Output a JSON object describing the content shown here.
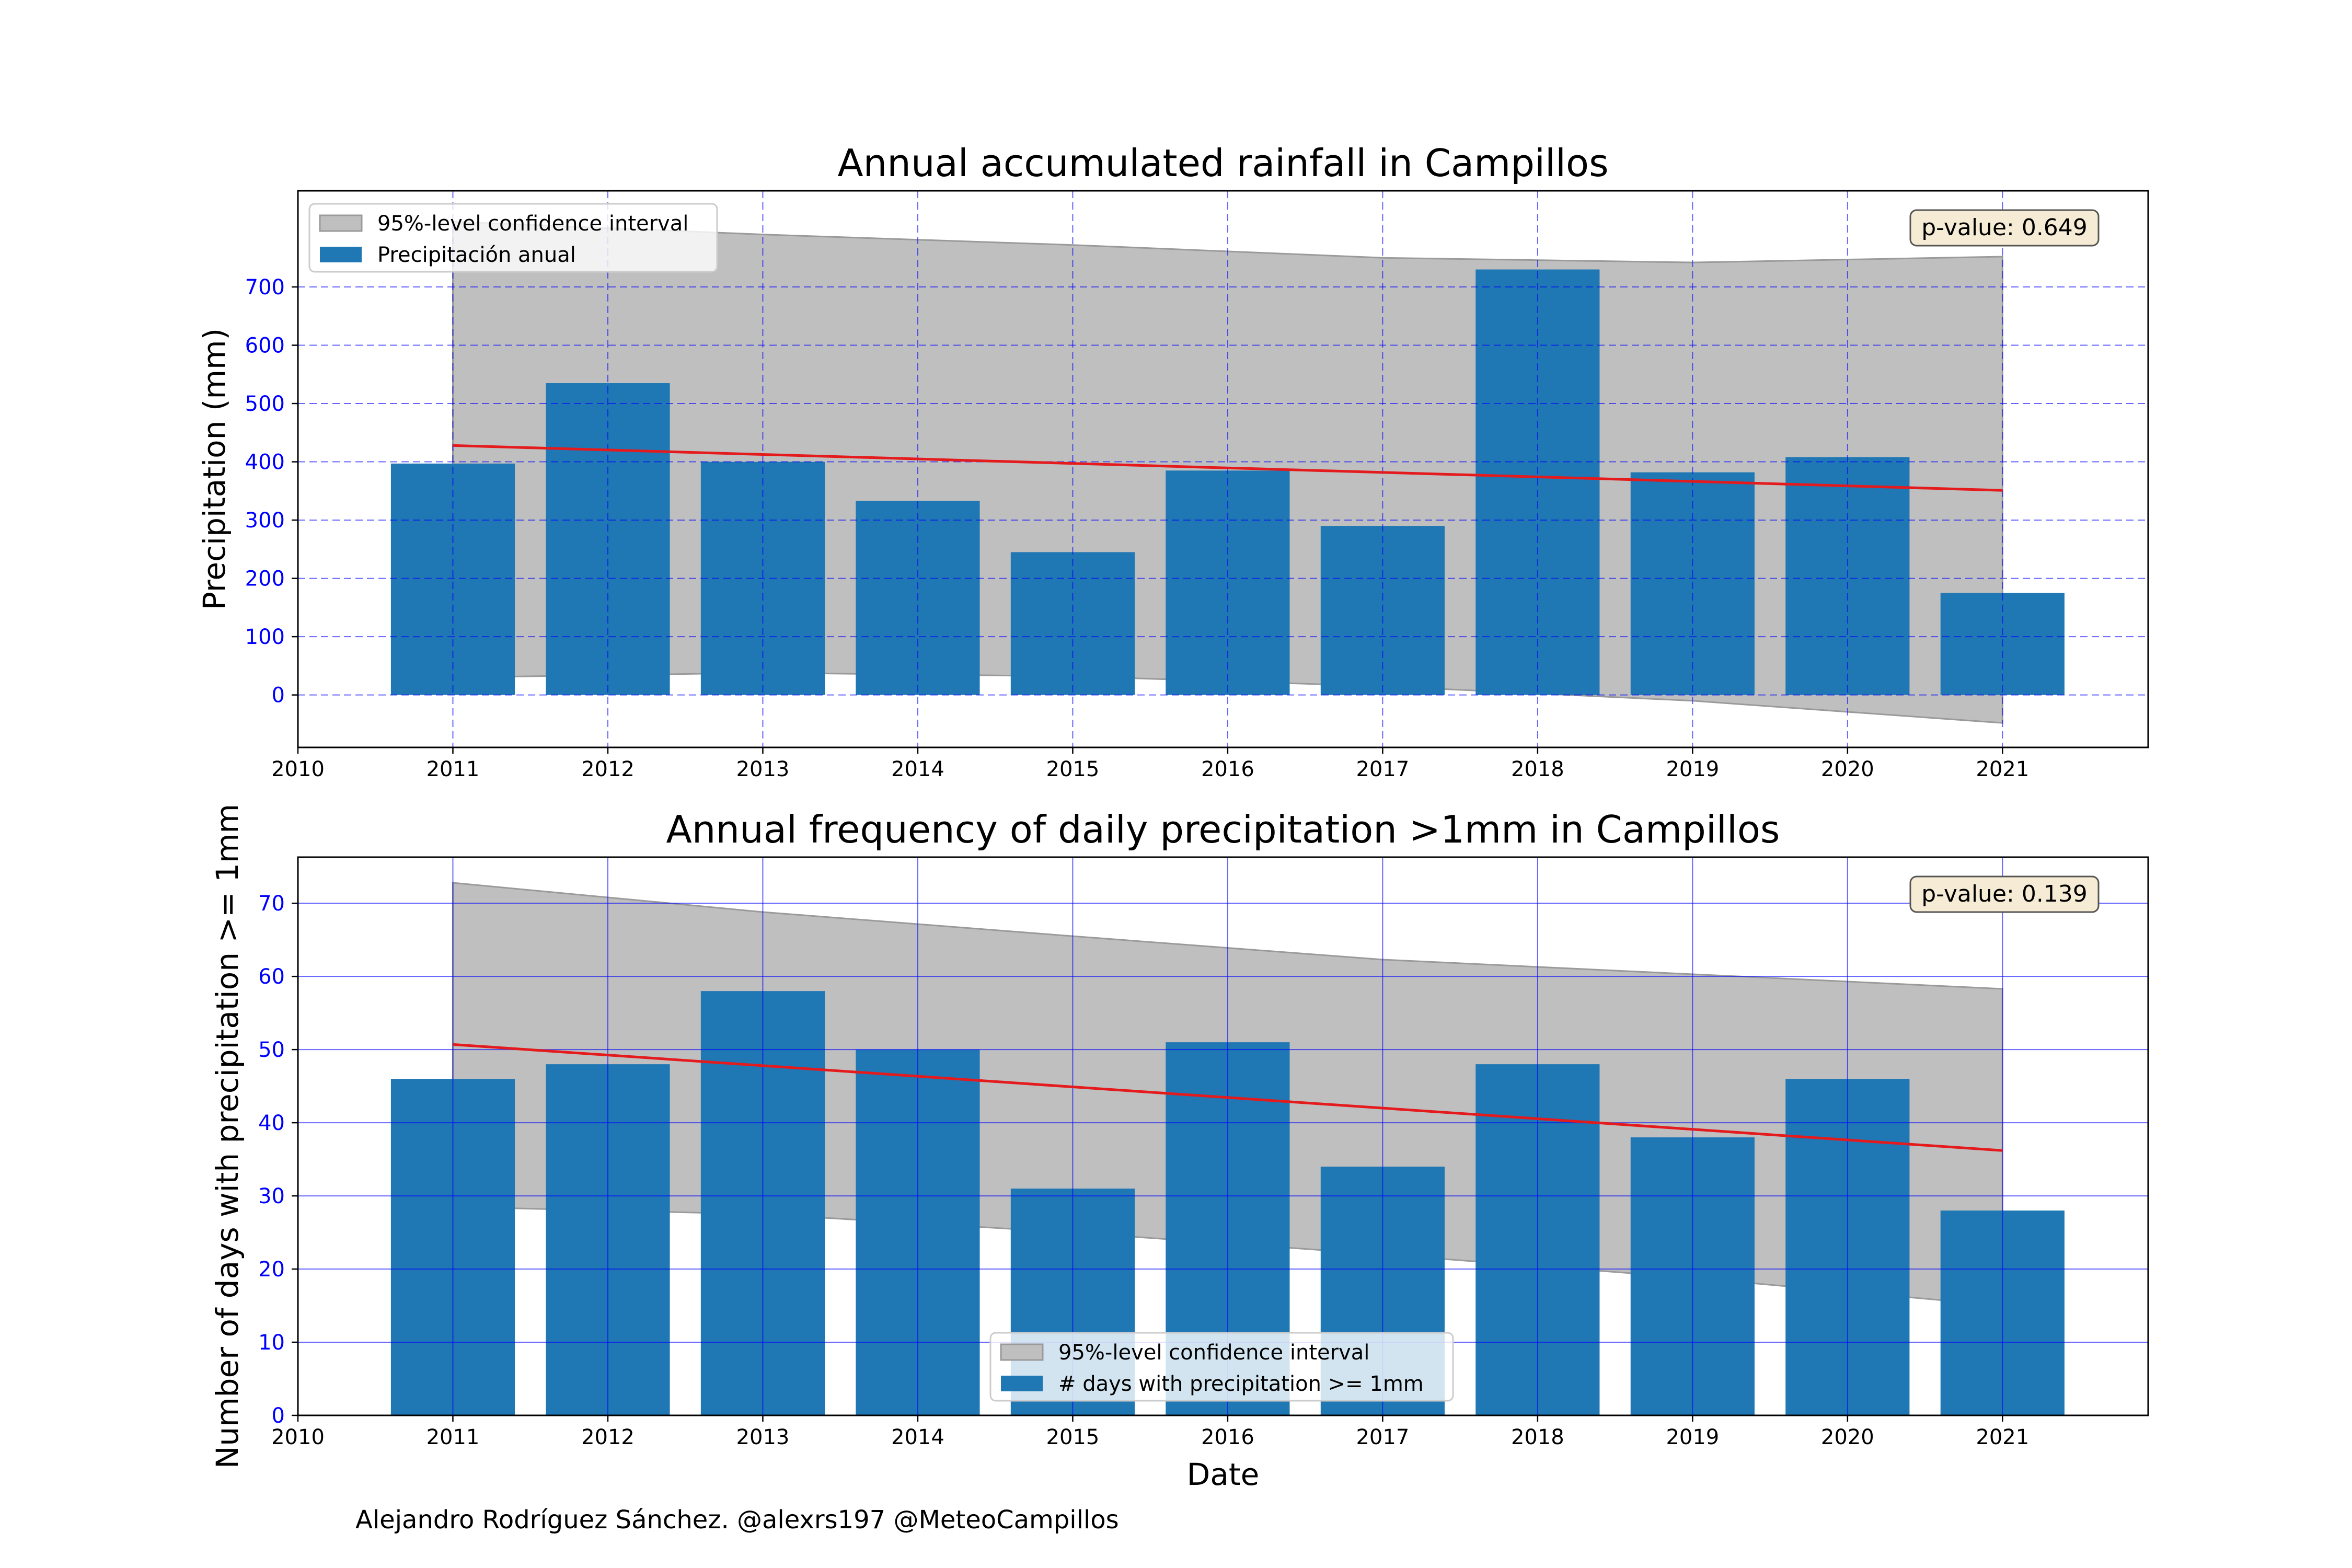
{
  "credit": "Alejandro Rodríguez Sánchez. @alexrs197 @MeteoCampillos",
  "colors": {
    "bar": "#1f77b4",
    "trend": "#e41a1c",
    "ci_fill": "#bfbfbf",
    "ci_edge": "#9a9a9a",
    "grid": "#0000ff",
    "tick_y": "#0000ff",
    "pbox_fill": "#f6ebd4"
  },
  "chart_data": [
    {
      "type": "bar",
      "title": "Annual accumulated rainfall in Campillos",
      "xlabel": "",
      "ylabel": "Precipitation (mm)",
      "x_ticks": [
        2010,
        2011,
        2012,
        2013,
        2014,
        2015,
        2016,
        2017,
        2018,
        2019,
        2020,
        2021
      ],
      "xlim": [
        2010,
        2021.94
      ],
      "y_ticks": [
        0,
        100,
        200,
        300,
        400,
        500,
        600,
        700
      ],
      "ylim": [
        -90,
        865
      ],
      "grid": "dashed",
      "years": [
        2011,
        2012,
        2013,
        2014,
        2015,
        2016,
        2017,
        2018,
        2019,
        2020,
        2021
      ],
      "values": [
        397,
        535,
        400,
        333,
        245,
        385,
        290,
        730,
        382,
        408,
        175
      ],
      "trend": {
        "start": [
          2011,
          428
        ],
        "end": [
          2021,
          351
        ]
      },
      "confidence_band": {
        "x": [
          2011,
          2013,
          2015,
          2017,
          2019,
          2021
        ],
        "upper": [
          812,
          790,
          772,
          750,
          742,
          752
        ],
        "lower": [
          30,
          38,
          32,
          15,
          -10,
          -48
        ]
      },
      "legend": {
        "position": "upper-left",
        "entries": [
          "95%-level confidence interval",
          "Precipitación anual"
        ]
      },
      "p_value": "p-value: 0.649"
    },
    {
      "type": "bar",
      "title": "Annual frequency of daily precipitation >1mm in Campillos",
      "xlabel": "Date",
      "ylabel": "Number of days with precipitation >= 1mm",
      "x_ticks": [
        2010,
        2011,
        2012,
        2013,
        2014,
        2015,
        2016,
        2017,
        2018,
        2019,
        2020,
        2021
      ],
      "xlim": [
        2010,
        2021.94
      ],
      "y_ticks": [
        0,
        10,
        20,
        30,
        40,
        50,
        60,
        70
      ],
      "ylim": [
        0,
        76.3
      ],
      "grid": "solid",
      "years": [
        2011,
        2012,
        2013,
        2014,
        2015,
        2016,
        2017,
        2018,
        2019,
        2020,
        2021
      ],
      "values": [
        46,
        48,
        58,
        50,
        31,
        51,
        34,
        48,
        38,
        46,
        28
      ],
      "trend": {
        "start": [
          2011,
          50.7
        ],
        "end": [
          2021,
          36.2
        ]
      },
      "confidence_band": {
        "x": [
          2011,
          2013,
          2015,
          2017,
          2019,
          2021
        ],
        "upper": [
          72.8,
          68.8,
          65.5,
          62.3,
          60.3,
          58.3
        ],
        "lower": [
          28.5,
          27.5,
          25.0,
          22.0,
          18.8,
          15.0
        ]
      },
      "legend": {
        "position": "lower-center",
        "entries": [
          "95%-level confidence interval",
          "# days with precipitation >= 1mm"
        ]
      },
      "p_value": "p-value: 0.139"
    }
  ]
}
